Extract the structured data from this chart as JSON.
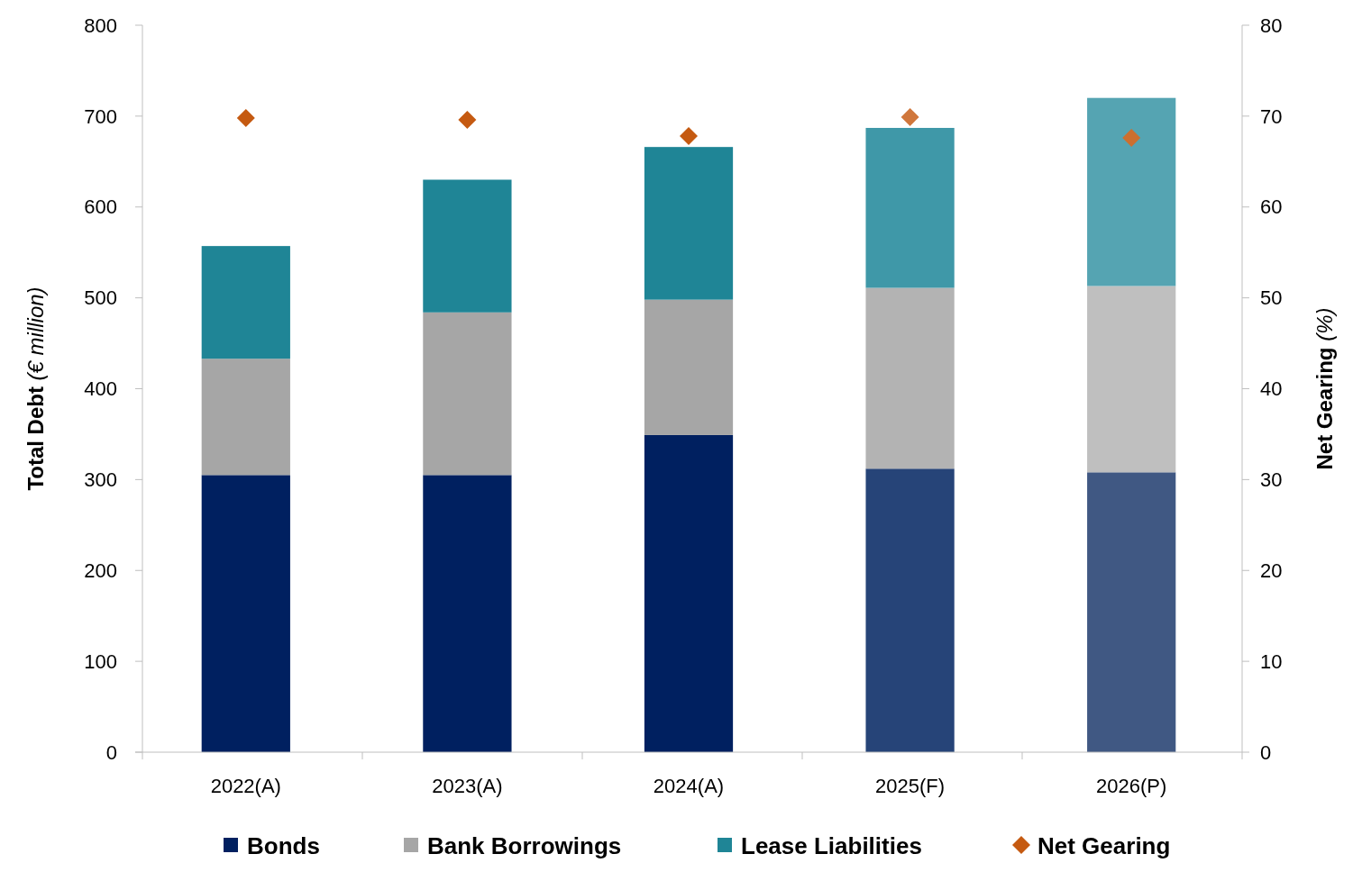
{
  "chart_data": {
    "type": "bar",
    "stacked": true,
    "categories": [
      "2022(A)",
      "2023(A)",
      "2024(A)",
      "2025(F)",
      "2026(P)"
    ],
    "ylabel": "Total Debt (€ million)",
    "y2label": "Net Gearing (%)",
    "ylim": [
      0,
      800
    ],
    "yticks": [
      0,
      100,
      200,
      300,
      400,
      500,
      600,
      700,
      800
    ],
    "y2lim": [
      0,
      80
    ],
    "y2ticks": [
      0,
      10,
      20,
      30,
      40,
      50,
      60,
      70,
      80
    ],
    "legend": "bottom",
    "grid": false,
    "series": [
      {
        "name": "Bonds",
        "color": "#002060",
        "colors": [
          "#002060",
          "#002060",
          "#002060",
          "#264478",
          "#405883"
        ],
        "values": [
          305,
          305,
          349,
          312,
          308
        ]
      },
      {
        "name": "Bank Borrowings",
        "color": "#a6a6a6",
        "colors": [
          "#a6a6a6",
          "#a6a6a6",
          "#a6a6a6",
          "#b3b3b3",
          "#bfbfbf"
        ],
        "values": [
          128,
          179,
          149,
          199,
          205
        ]
      },
      {
        "name": "Lease Liabilities",
        "color": "#1f8596",
        "colors": [
          "#1f8596",
          "#1f8596",
          "#1f8596",
          "#3f98a8",
          "#55a4b2"
        ],
        "values": [
          124,
          146,
          168,
          176,
          207
        ]
      },
      {
        "name": "Net Gearing",
        "type": "scatter",
        "axis": "y2",
        "marker": "diamond",
        "color": "#c55a11",
        "colors": [
          "#c55a11",
          "#c55a11",
          "#c55a11",
          "#d0773c",
          "#cc6f2f"
        ],
        "values": [
          69.8,
          69.6,
          67.8,
          69.9,
          67.6
        ]
      }
    ]
  }
}
